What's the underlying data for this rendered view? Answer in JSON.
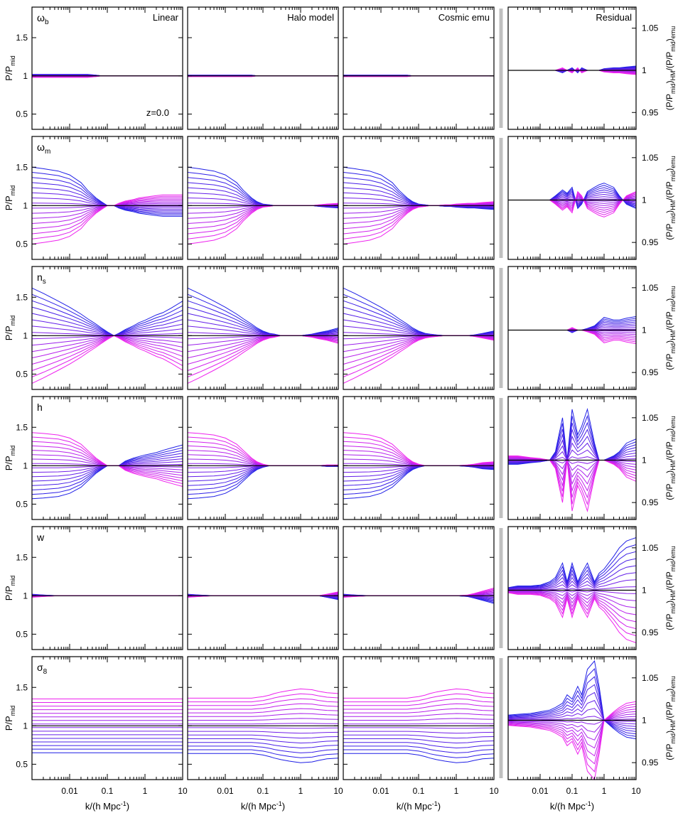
{
  "chart_data": {
    "type": "line",
    "redshift_label": "z=0.0",
    "columns": [
      {
        "key": "linear",
        "title": "Linear",
        "ylim": [
          0.3,
          1.9
        ],
        "yticks": [
          "0.5",
          "1",
          "1.5"
        ],
        "axis_side": "left"
      },
      {
        "key": "halo",
        "title": "Halo model",
        "ylim": [
          0.3,
          1.9
        ],
        "yticks": [],
        "axis_side": "left"
      },
      {
        "key": "emu",
        "title": "Cosmic emu",
        "ylim": [
          0.3,
          1.9
        ],
        "yticks": [],
        "axis_side": "left"
      },
      {
        "key": "residual",
        "title": "Residual",
        "ylim": [
          0.93,
          1.075
        ],
        "yticks": [
          "0.95",
          "1",
          "1.05"
        ],
        "axis_side": "right"
      }
    ],
    "rows": [
      {
        "param": "ωb",
        "param_base": "ω",
        "param_sub": "b"
      },
      {
        "param": "ωm",
        "param_base": "ω",
        "param_sub": "m"
      },
      {
        "param": "ns",
        "param_base": "n",
        "param_sub": "s"
      },
      {
        "param": "h",
        "param_base": "h",
        "param_sub": ""
      },
      {
        "param": "w",
        "param_base": "w",
        "param_sub": ""
      },
      {
        "param": "σ8",
        "param_base": "σ",
        "param_sub": "8"
      }
    ],
    "xlabel": {
      "base": "k/(h Mpc",
      "sup": "-1",
      "end": ")"
    },
    "xscale": "log",
    "xlim": [
      0.001,
      10
    ],
    "xticks": [
      {
        "v": 0.01,
        "label": "0.01"
      },
      {
        "v": 0.1,
        "label": "0.1"
      },
      {
        "v": 1,
        "label": "1"
      },
      {
        "v": 10,
        "label": "10"
      }
    ],
    "ylabel_left": {
      "base": "P/P",
      "sub": "mid"
    },
    "ylabel_right": {
      "text": "(P/P",
      "sub1": "mid",
      "mid": ")",
      "sub2": "HM",
      "mid2": "/(P/P",
      "sub3": "mid",
      "mid3": ")",
      "sub4": "emu"
    },
    "n_curves": 16,
    "colors": {
      "low_param": "#1f1fe6",
      "high_param": "#ee22ee",
      "reference": "#000000",
      "separator": "#c0c0c0"
    },
    "x": [
      0.001,
      0.002,
      0.005,
      0.01,
      0.02,
      0.03,
      0.05,
      0.07,
      0.1,
      0.15,
      0.2,
      0.3,
      0.5,
      0.7,
      1,
      2,
      3,
      5,
      10
    ],
    "envelopes": [
      [
        [
          1.02,
          1.02,
          1.02,
          1.02,
          1.02,
          1.02,
          1.01,
          1.0,
          1.0,
          1.0,
          1.0,
          1.0,
          1.0,
          1.0,
          1.0,
          1.0,
          1.0,
          1.0,
          1.0
        ],
        [
          1.01,
          1.01,
          1.01,
          1.01,
          1.01,
          1.01,
          1.01,
          1.0,
          1.0,
          1.0,
          1.0,
          1.0,
          1.0,
          1.0,
          1.0,
          1.0,
          1.0,
          1.0,
          1.0
        ],
        [
          1.01,
          1.01,
          1.01,
          1.01,
          1.01,
          1.01,
          1.01,
          1.0,
          1.0,
          1.0,
          1.0,
          1.0,
          1.0,
          1.0,
          1.0,
          1.0,
          1.0,
          1.0,
          1.0
        ],
        [
          1.0,
          1.0,
          1.0,
          1.0,
          1.0,
          1.0,
          0.997,
          1.0,
          1.003,
          0.997,
          1.003,
          1.0,
          1.0,
          1.0,
          1.002,
          1.003,
          1.003,
          1.004,
          1.005
        ]
      ],
      [
        [
          1.5,
          1.48,
          1.45,
          1.4,
          1.3,
          1.2,
          1.1,
          1.05,
          1.0,
          1.0,
          0.97,
          0.94,
          0.92,
          0.9,
          0.89,
          0.87,
          0.86,
          0.86,
          0.86
        ],
        [
          1.5,
          1.48,
          1.45,
          1.4,
          1.3,
          1.2,
          1.1,
          1.05,
          1.02,
          1.01,
          1.0,
          1.0,
          1.0,
          1.0,
          1.0,
          1.0,
          0.99,
          0.98,
          0.97
        ],
        [
          1.5,
          1.48,
          1.45,
          1.4,
          1.3,
          1.2,
          1.1,
          1.05,
          1.02,
          1.01,
          1.0,
          1.0,
          0.99,
          0.99,
          0.98,
          0.97,
          0.97,
          0.96,
          0.95
        ],
        [
          1.0,
          1.0,
          1.0,
          1.0,
          1.0,
          1.005,
          1.012,
          1.008,
          1.015,
          0.99,
          0.995,
          1.01,
          1.015,
          1.018,
          1.02,
          1.015,
          1.005,
          0.995,
          0.99
        ]
      ],
      [
        [
          1.62,
          1.55,
          1.45,
          1.37,
          1.28,
          1.22,
          1.15,
          1.1,
          1.05,
          1.0,
          1.03,
          1.08,
          1.13,
          1.17,
          1.2,
          1.27,
          1.3,
          1.36,
          1.45
        ],
        [
          1.62,
          1.55,
          1.45,
          1.37,
          1.28,
          1.22,
          1.15,
          1.1,
          1.06,
          1.03,
          1.02,
          1.0,
          1.0,
          1.0,
          1.0,
          1.02,
          1.04,
          1.06,
          1.1
        ],
        [
          1.62,
          1.55,
          1.45,
          1.37,
          1.28,
          1.22,
          1.15,
          1.1,
          1.06,
          1.03,
          1.02,
          1.01,
          1.0,
          1.0,
          1.0,
          1.0,
          1.01,
          1.03,
          1.06
        ],
        [
          1.0,
          1.0,
          1.0,
          1.0,
          1.0,
          1.0,
          1.0,
          1.0,
          0.997,
          1.0,
          1.0,
          1.002,
          1.005,
          1.01,
          1.015,
          1.012,
          1.012,
          1.014,
          1.016
        ]
      ],
      [
        [
          0.57,
          0.58,
          0.6,
          0.64,
          0.72,
          0.8,
          0.9,
          0.95,
          1.0,
          1.0,
          1.0,
          1.06,
          1.1,
          1.12,
          1.14,
          1.17,
          1.2,
          1.23,
          1.27
        ],
        [
          0.57,
          0.58,
          0.6,
          0.64,
          0.72,
          0.8,
          0.9,
          0.95,
          0.98,
          1.0,
          1.0,
          1.0,
          1.0,
          1.0,
          1.0,
          1.0,
          1.0,
          0.99,
          0.99
        ],
        [
          0.57,
          0.58,
          0.6,
          0.64,
          0.72,
          0.8,
          0.9,
          0.95,
          0.98,
          1.0,
          1.0,
          1.0,
          1.0,
          1.0,
          1.0,
          0.99,
          0.98,
          0.96,
          0.95
        ],
        [
          0.995,
          0.995,
          0.997,
          0.998,
          1.0,
          1.01,
          1.05,
          1.0,
          1.06,
          1.03,
          1.04,
          1.06,
          1.02,
          1.0,
          1.0,
          1.005,
          1.01,
          1.02,
          1.025
        ]
      ],
      [
        [
          1.02,
          1.01,
          1.0,
          1.0,
          1.0,
          1.0,
          1.0,
          1.0,
          1.0,
          1.0,
          1.0,
          1.0,
          1.0,
          1.0,
          1.0,
          1.0,
          1.0,
          1.0,
          1.0
        ],
        [
          1.02,
          1.01,
          1.0,
          1.0,
          1.0,
          1.0,
          1.0,
          1.0,
          1.0,
          1.0,
          1.0,
          1.0,
          1.0,
          1.0,
          1.0,
          1.0,
          1.0,
          0.98,
          0.95
        ],
        [
          1.02,
          1.01,
          1.0,
          1.0,
          1.0,
          1.0,
          1.0,
          1.0,
          1.0,
          1.0,
          1.0,
          1.0,
          1.0,
          1.0,
          1.0,
          0.99,
          0.97,
          0.94,
          0.9
        ],
        [
          1.003,
          1.005,
          1.005,
          1.006,
          1.01,
          1.015,
          1.032,
          1.01,
          1.032,
          1.01,
          1.02,
          1.032,
          1.01,
          1.02,
          1.025,
          1.04,
          1.05,
          1.058,
          1.062
        ]
      ],
      [
        [
          0.65,
          0.65,
          0.65,
          0.65,
          0.65,
          0.65,
          0.65,
          0.65,
          0.65,
          0.65,
          0.65,
          0.65,
          0.65,
          0.65,
          0.65,
          0.65,
          0.65,
          0.65,
          0.65
        ],
        [
          0.64,
          0.64,
          0.64,
          0.64,
          0.64,
          0.64,
          0.64,
          0.63,
          0.62,
          0.6,
          0.58,
          0.56,
          0.54,
          0.53,
          0.52,
          0.53,
          0.55,
          0.57,
          0.58
        ],
        [
          0.64,
          0.64,
          0.64,
          0.64,
          0.64,
          0.64,
          0.64,
          0.63,
          0.62,
          0.6,
          0.58,
          0.56,
          0.54,
          0.53,
          0.52,
          0.53,
          0.55,
          0.57,
          0.58
        ],
        [
          1.006,
          1.007,
          1.008,
          1.01,
          1.012,
          1.015,
          1.02,
          1.03,
          1.025,
          1.04,
          1.03,
          1.06,
          1.07,
          1.04,
          1.0,
          0.99,
          0.985,
          0.98,
          0.978
        ]
      ]
    ]
  }
}
